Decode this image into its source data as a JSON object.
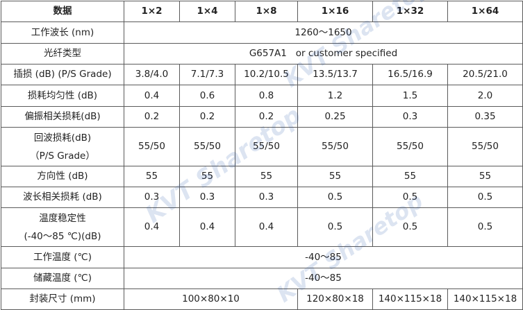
{
  "header": {
    "label": "数据",
    "cols": [
      "1×2",
      "1×4",
      "1×8",
      "1×16",
      "1×32",
      "1×64"
    ]
  },
  "rows": {
    "wavelength": {
      "label": "工作波长 (nm)",
      "value": "1260～1650"
    },
    "fiber_type": {
      "label": "光纤类型",
      "value": "G657A1   or customer specified"
    },
    "insertion_loss": {
      "label": "插损 (dB)  (P/S Grade)",
      "values": [
        "3.8/4.0",
        "7.1/7.3",
        "10.2/10.5",
        "13.5/13.7",
        "16.5/16.9",
        "20.5/21.0"
      ]
    },
    "uniformity": {
      "label": "损耗均匀性 (dB)",
      "values": [
        "0.4",
        "0.6",
        "0.8",
        "1.2",
        "1.5",
        "2.0"
      ]
    },
    "pdl": {
      "label": "偏振相关损耗(dB)",
      "values": [
        "0.2",
        "0.2",
        "0.2",
        "0.25",
        "0.3",
        "0.35"
      ]
    },
    "return_loss": {
      "label_line1": "回波损耗(dB)",
      "label_line2": "（P/S Grade）",
      "values": [
        "55/50",
        "55/50",
        "55/50",
        "55/50",
        "55/50",
        "55/50"
      ]
    },
    "directivity": {
      "label": "方向性 (dB)",
      "values": [
        "55",
        "55",
        "55",
        "55",
        "55",
        "55"
      ]
    },
    "wdl": {
      "label": "波长相关损耗 (dB)",
      "values": [
        "0.3",
        "0.3",
        "0.3",
        "0.5",
        "0.5",
        "0.5"
      ]
    },
    "temp_stability": {
      "label_line1": "温度稳定性",
      "label_line2": "(-40～85 ℃)(dB)",
      "values": [
        "0.4",
        "0.4",
        "0.4",
        "0.5",
        "0.5",
        "0.5"
      ]
    },
    "operating_temp": {
      "label": "工作温度 (℃)",
      "value": "-40～85"
    },
    "storage_temp": {
      "label": "储藏温度 (℃)",
      "value": "-40～85"
    },
    "package_size": {
      "label": "封装尺寸 (mm)",
      "values": [
        "100×80×10",
        "120×80×18",
        "140×115×18",
        "140×115×18"
      ]
    }
  },
  "watermark": {
    "text": "KVT Sharetop",
    "color": "#1f4fa8"
  }
}
